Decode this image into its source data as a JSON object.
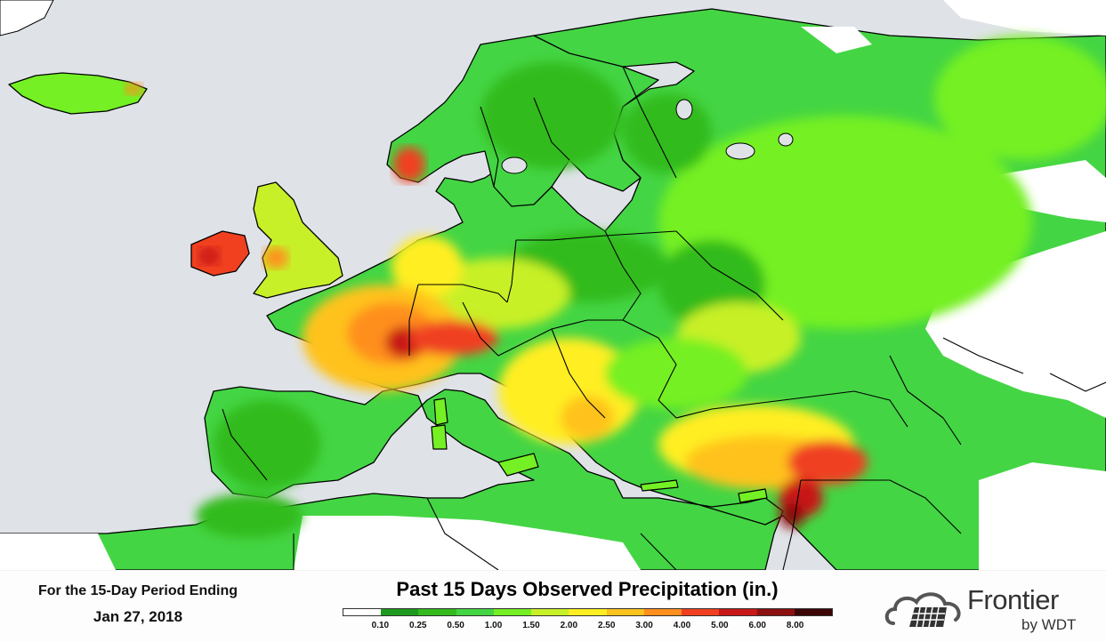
{
  "map": {
    "title": "Past 15 Days Observed Precipitation (in.)",
    "period_label": "For the 15-Day Period Ending",
    "period_date": "Jan 27, 2018",
    "region": "Europe, Mediterranean and Middle East",
    "colors": {
      "ocean": "#dfe3e8",
      "land_dry": "#ffffff",
      "border": "#000000"
    },
    "precipitation_patches": [
      {
        "region": "eastern-europe-russia",
        "level": "1.00-1.50"
      },
      {
        "region": "fennoscandia",
        "level": "0.50-1.00"
      },
      {
        "region": "central-europe",
        "level": "0.50-1.00"
      },
      {
        "region": "france-alps",
        "level": "3.00-6.00"
      },
      {
        "region": "ireland",
        "level": "4.00-5.00"
      },
      {
        "region": "western-norway",
        "level": "4.00-5.00"
      },
      {
        "region": "iberia",
        "level": "0.25-0.50"
      },
      {
        "region": "balkans",
        "level": "2.00-2.50"
      },
      {
        "region": "turkey-south",
        "level": "4.00-6.00"
      },
      {
        "region": "levant",
        "level": "5.00-8.00"
      },
      {
        "region": "north-africa-coast",
        "level": "0.50-1.50"
      }
    ]
  },
  "legend": {
    "colors": [
      "#ffffff",
      "#1e9b1e",
      "#33bb1e",
      "#44d544",
      "#74f024",
      "#c8f028",
      "#ffee22",
      "#ffc21e",
      "#ff8f1e",
      "#f04020",
      "#c81818",
      "#8c1010",
      "#3c0606"
    ],
    "ticks": [
      "0.10",
      "0.25",
      "0.50",
      "1.00",
      "1.50",
      "2.00",
      "2.50",
      "3.00",
      "4.00",
      "5.00",
      "6.00",
      "8.00"
    ]
  },
  "brand": {
    "name": "Frontier",
    "sub": "by WDT",
    "logo_icon": "cloud-solar-panel-icon"
  }
}
